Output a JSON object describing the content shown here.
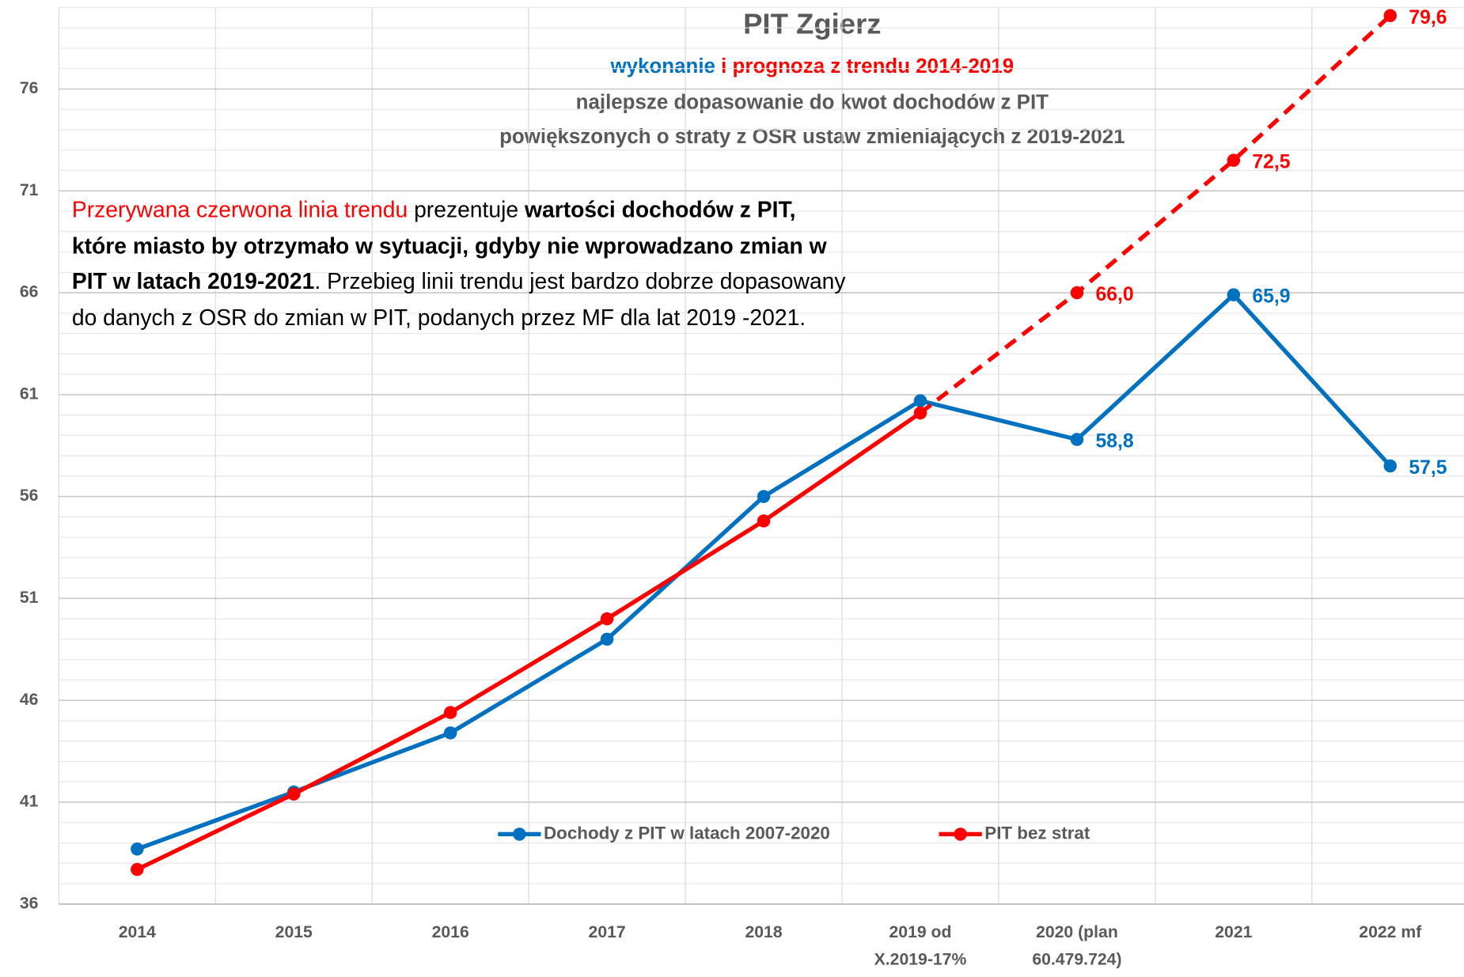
{
  "chart_data": {
    "type": "line",
    "title": "PIT Zgierz",
    "subtitle_parts": [
      {
        "text": "wykonanie",
        "color": "#0070c0"
      },
      {
        "text": " i prognoza z trendu 2014-2019",
        "color": "#ff0000"
      }
    ],
    "subtitle_lines": [
      "najlepsze dopasowanie do kwot dochodów z PIT",
      "powiększonych o straty z OSR ustaw zmieniających z 2019-2021"
    ],
    "annotation": [
      {
        "text": "Przerywana czerwona linia trendu",
        "color": "#ff0000",
        "bold": false
      },
      {
        "text": " prezentuje ",
        "color": "#000000",
        "bold": false
      },
      {
        "text": "wartości dochodów z PIT, które miasto by otrzymało w sytuacji, gdyby nie wprowadzano zmian w PIT w latach 2019-2021",
        "color": "#000000",
        "bold": true
      },
      {
        "text": ". Przebieg linii trendu jest bardzo dobrze dopasowany do danych z OSR do zmian w PIT, podanych przez MF dla lat 2019 -2021.",
        "color": "#000000",
        "bold": false
      }
    ],
    "categories": [
      "2014",
      "2015",
      "2016",
      "2017",
      "2018",
      "2019 od\nX.2019-17%",
      "2020 (plan\n60.479.724)",
      "2021",
      "2022 mf"
    ],
    "series": [
      {
        "name": "Dochody z PIT w latach 2007-2020",
        "color": "#0070c0",
        "values": [
          38.7,
          41.5,
          44.4,
          49.0,
          56.0,
          60.7,
          58.8,
          65.9,
          57.5
        ],
        "value_labels": [
          null,
          null,
          null,
          null,
          null,
          null,
          "58,8",
          "65,9",
          "57,5"
        ]
      },
      {
        "name": "PIT bez strat",
        "color": "#ff0000",
        "dashed_from_index": 5,
        "values": [
          37.7,
          41.4,
          45.4,
          50.0,
          54.8,
          60.1,
          66.0,
          72.5,
          79.6
        ],
        "value_labels": [
          null,
          null,
          null,
          null,
          null,
          null,
          "66,0",
          "72,5",
          "79,6"
        ]
      }
    ],
    "ylim": [
      36,
      80
    ],
    "yticks": [
      36,
      41,
      46,
      51,
      56,
      61,
      66,
      71,
      76
    ],
    "grid": true,
    "minor_grid": true,
    "legend": "bottom"
  }
}
